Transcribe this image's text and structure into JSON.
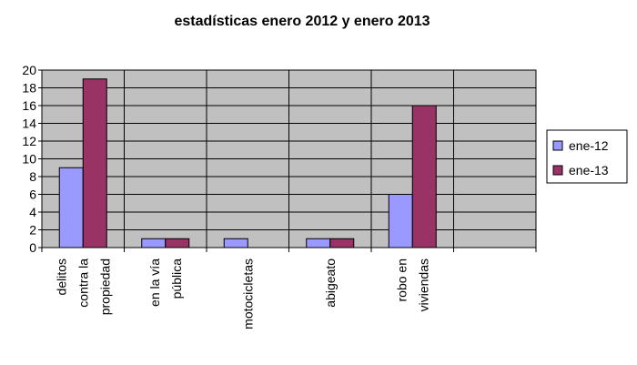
{
  "chart_data": {
    "type": "bar",
    "title": "estadísticas enero 2012 y enero 2013",
    "xlabel": "",
    "ylabel": "",
    "ylim": [
      0,
      20
    ],
    "yticks": [
      0,
      2,
      4,
      6,
      8,
      10,
      12,
      14,
      16,
      18,
      20
    ],
    "grid": true,
    "legend_position": "right",
    "categories": [
      [
        "delitos",
        "contra la",
        "propiedad"
      ],
      [
        "en la vía",
        "pública"
      ],
      [
        "motocicletas"
      ],
      [
        "abigeato"
      ],
      [
        "robo en",
        "viviendas"
      ],
      []
    ],
    "series": [
      {
        "name": "ene-12",
        "color": "#9999ff",
        "values": [
          9,
          1,
          1,
          1,
          6,
          null
        ]
      },
      {
        "name": "ene-13",
        "color": "#993366",
        "values": [
          19,
          1,
          null,
          1,
          16,
          null
        ]
      }
    ],
    "plot_background": "#c0c0c0"
  }
}
